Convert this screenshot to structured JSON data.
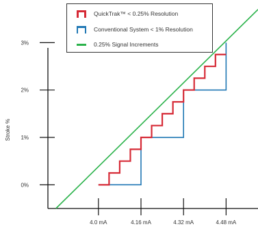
{
  "chart_data": {
    "type": "line",
    "title": "",
    "xlabel": "",
    "ylabel": "Stroke %",
    "x_ticks": [
      {
        "value": 4.0,
        "label": "4.0 mA"
      },
      {
        "value": 4.16,
        "label": "4.16 mA"
      },
      {
        "value": 4.32,
        "label": "4.32 mA"
      },
      {
        "value": 4.48,
        "label": "4.48 mA"
      }
    ],
    "y_ticks": [
      {
        "value": 0,
        "label": "0%"
      },
      {
        "value": 1,
        "label": "1%"
      },
      {
        "value": 2,
        "label": "2%"
      },
      {
        "value": 3,
        "label": "3%"
      }
    ],
    "xlim": [
      3.81,
      4.6
    ],
    "ylim": [
      -0.5,
      3.9
    ],
    "grid": false,
    "legend_position": "top-center",
    "series": [
      {
        "name": "QuickTrak™ < 0.25% Resolution",
        "color": "#d62a36",
        "style": "step",
        "x": [
          4.0,
          4.04,
          4.04,
          4.08,
          4.08,
          4.12,
          4.12,
          4.16,
          4.16,
          4.2,
          4.2,
          4.24,
          4.24,
          4.28,
          4.28,
          4.32,
          4.32,
          4.36,
          4.36,
          4.4,
          4.4,
          4.44,
          4.44,
          4.48
        ],
        "y": [
          0.0,
          0.0,
          0.25,
          0.25,
          0.5,
          0.5,
          0.75,
          0.75,
          1.0,
          1.0,
          1.25,
          1.25,
          1.5,
          1.5,
          1.75,
          1.75,
          2.0,
          2.0,
          2.25,
          2.25,
          2.5,
          2.5,
          2.75,
          2.75
        ]
      },
      {
        "name": "Conventional System < 1% Resolution",
        "color": "#1f77b4",
        "style": "step",
        "x": [
          4.0,
          4.16,
          4.16,
          4.32,
          4.32,
          4.48,
          4.48
        ],
        "y": [
          0.0,
          0.0,
          1.0,
          1.0,
          2.0,
          2.0,
          3.0
        ]
      },
      {
        "name": "0.25% Signal Increments",
        "color": "#2ab24a",
        "style": "line",
        "x": [
          3.84,
          4.6
        ],
        "y": [
          -0.5,
          3.7
        ]
      }
    ]
  }
}
